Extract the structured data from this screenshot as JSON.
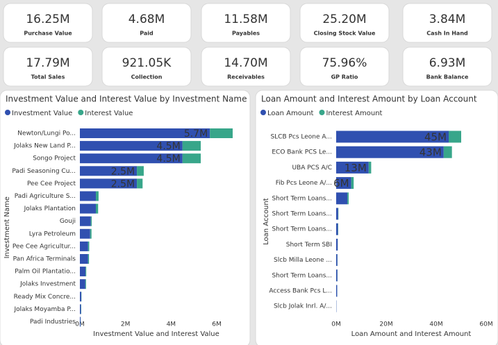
{
  "cards": [
    {
      "value": "16.25M",
      "label": "Purchase Value"
    },
    {
      "value": "4.68M",
      "label": "Paid"
    },
    {
      "value": "11.58M",
      "label": "Payables"
    },
    {
      "value": "25.20M",
      "label": "Closing Stock Value"
    },
    {
      "value": "3.84M",
      "label": "Cash In Hand"
    },
    {
      "value": "17.79M",
      "label": "Total Sales"
    },
    {
      "value": "921.05K",
      "label": "Collection"
    },
    {
      "value": "14.70M",
      "label": "Receivables"
    },
    {
      "value": "75.96%",
      "label": "GP Ratio"
    },
    {
      "value": "6.93M",
      "label": "Bank Balance"
    }
  ],
  "chart_data": [
    {
      "type": "hbar_stacked",
      "title": "Investment Value and Interest Value by Investment Name",
      "x_label": "Investment Value and Interest Value",
      "y_label": "Investment Name",
      "categories": [
        "Newton/Lungi Po...",
        "Jolaks New Land P...",
        "Songo Project",
        "Padi Seasoning Cu...",
        "Pee Cee Project",
        "Padi Agriculture S...",
        "Jolaks Plantation",
        "Gouji",
        "Lyra Petroleum",
        "Pee Cee Agricultur...",
        "Pan Africa Terminals",
        "Palm Oil Plantatio...",
        "Jolaks Investment",
        "Ready Mix Concre...",
        "Jolaks Moyamba P...",
        "Padi Industries"
      ],
      "series": [
        {
          "name": "Investment Value",
          "color": "#3050b0",
          "values": [
            5700000,
            4500000,
            4500000,
            2500000,
            2500000,
            700000,
            700000,
            480000,
            450000,
            360000,
            360000,
            250000,
            240000,
            60000,
            50000,
            30000
          ],
          "value_labels": [
            "5.7M",
            "4.5M",
            "4.5M",
            "2.5M",
            "2.5M",
            null,
            null,
            null,
            null,
            null,
            null,
            null,
            null,
            null,
            null,
            null
          ]
        },
        {
          "name": "Interest Value",
          "color": "#38a68a",
          "values": [
            1000000,
            800000,
            800000,
            300000,
            250000,
            120000,
            100000,
            40000,
            60000,
            50000,
            40000,
            30000,
            30000,
            10000,
            10000,
            5000
          ]
        }
      ],
      "xlim": [
        0,
        6700000
      ],
      "xticks": [
        {
          "value": 0,
          "label": "0M"
        },
        {
          "value": 2000000,
          "label": "2M"
        },
        {
          "value": 4000000,
          "label": "4M"
        },
        {
          "value": 6000000,
          "label": "6M"
        }
      ]
    },
    {
      "type": "hbar_stacked",
      "title": "Loan Amount and Interest Amount by Loan Account",
      "x_label": "Loan Amount and Interest Amount",
      "y_label": "Loan Account",
      "categories": [
        "SLCB Pcs Leone A...",
        "ECO Bank PCS Le...",
        "UBA PCS A/C",
        "Fib Pcs Leone A/...",
        "Short Term Loans...",
        "Short Term Loans...",
        "Short Term Loans...",
        "Short Term SBI",
        "Slcb Milla Leone ...",
        "Short Term Loans...",
        "Access Bank Pcs L...",
        "Slcb Jolak Inrl. A/..."
      ],
      "series": [
        {
          "name": "Loan Amount",
          "color": "#3050b0",
          "values": [
            45000000,
            43000000,
            13000000,
            6000000,
            4500000,
            800000,
            700000,
            600000,
            500000,
            500000,
            400000,
            100000
          ],
          "value_labels": [
            "45M",
            "43M",
            "13M",
            "6M",
            null,
            null,
            null,
            null,
            null,
            null,
            null,
            null
          ]
        },
        {
          "name": "Interest Amount",
          "color": "#38a68a",
          "values": [
            5000000,
            3300000,
            1000000,
            1000000,
            500000,
            100000,
            100000,
            50000,
            50000,
            50000,
            30000,
            10000
          ]
        }
      ],
      "xlim": [
        0,
        60000000
      ],
      "xticks": [
        {
          "value": 0,
          "label": "0M"
        },
        {
          "value": 20000000,
          "label": "20M"
        },
        {
          "value": 40000000,
          "label": "40M"
        },
        {
          "value": 60000000,
          "label": "60M"
        }
      ]
    }
  ]
}
